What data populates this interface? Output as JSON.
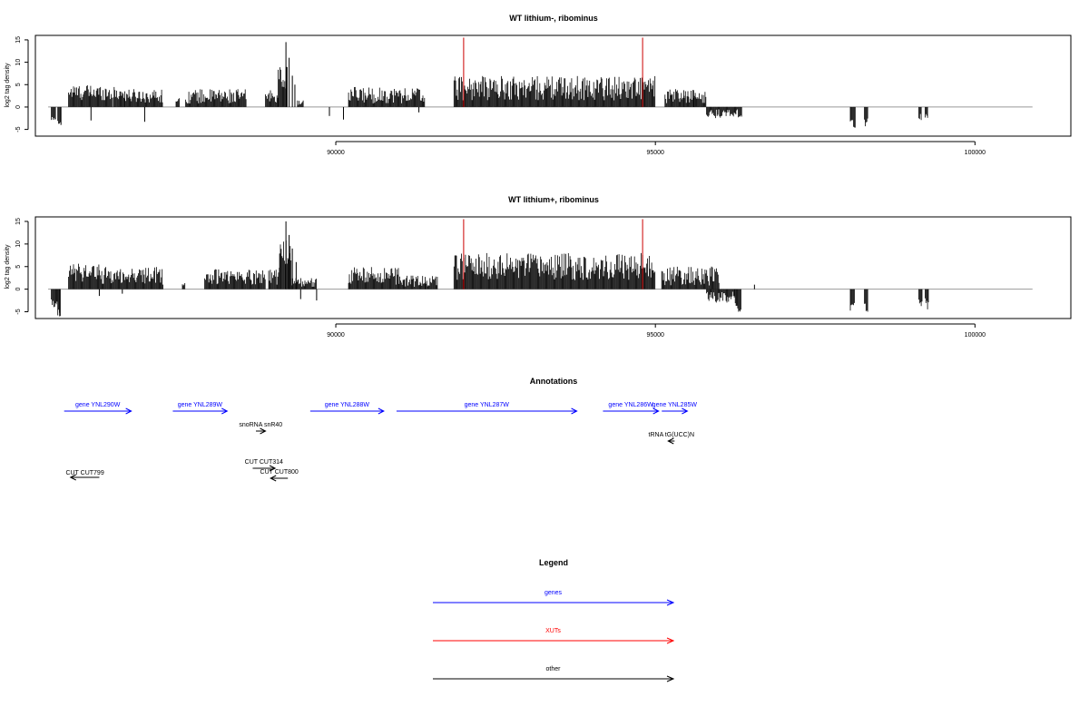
{
  "chart_data": [
    {
      "type": "bar",
      "title": "WT lithium-, ribominus",
      "ylabel": "log2 tag density",
      "xlim": [
        85300,
        101500
      ],
      "ylim": [
        -6.5,
        16
      ],
      "yticks": [
        "15",
        "10",
        "5",
        "0",
        "-5"
      ],
      "ytick_values": [
        15,
        10,
        5,
        0,
        -5
      ],
      "xticks": [
        "90000",
        "95000",
        "100000"
      ],
      "xtick_values": [
        90000,
        95000,
        100000
      ],
      "baseline_color": "#999999",
      "bar_color": "#000000",
      "marker_color": "#cc0000",
      "markers": [
        92000,
        94800
      ],
      "baseline_range": [
        85500,
        100900
      ],
      "segments": [
        {
          "start": 85550,
          "end": 85620,
          "min": 2,
          "max": 3,
          "sign": -1
        },
        {
          "start": 85650,
          "end": 85700,
          "min": 3,
          "max": 4.5,
          "sign": -1
        },
        {
          "start": 85820,
          "end": 86500,
          "min": 1.5,
          "max": 5,
          "sign": 1
        },
        {
          "start": 86520,
          "end": 86700,
          "min": 1.5,
          "max": 4.5,
          "sign": 1
        },
        {
          "start": 86700,
          "end": 87300,
          "min": 1,
          "max": 4,
          "sign": 1
        },
        {
          "start": 87500,
          "end": 87560,
          "min": 1,
          "max": 2,
          "sign": 1
        },
        {
          "start": 87650,
          "end": 88600,
          "min": 0.8,
          "max": 4,
          "sign": 1
        },
        {
          "start": 88900,
          "end": 89100,
          "min": 1,
          "max": 4,
          "sign": 1
        },
        {
          "start": 89100,
          "end": 89250,
          "min": 4,
          "max": 9,
          "sign": 1
        },
        {
          "start": 89400,
          "end": 89500,
          "min": 0.5,
          "max": 1.5,
          "sign": 1
        },
        {
          "start": 90200,
          "end": 91400,
          "min": 0.8,
          "max": 4.5,
          "sign": 1
        },
        {
          "start": 91850,
          "end": 95000,
          "min": 1.5,
          "max": 7,
          "sign": 1
        },
        {
          "start": 95150,
          "end": 95800,
          "min": 0.8,
          "max": 4,
          "sign": 1
        },
        {
          "start": 95800,
          "end": 96350,
          "min": 0.5,
          "max": 2.5,
          "sign": -1
        },
        {
          "start": 98050,
          "end": 98100,
          "min": 2.5,
          "max": 4.5,
          "sign": -1
        },
        {
          "start": 98100,
          "end": 98130,
          "min": 3.5,
          "max": 5,
          "sign": -1
        },
        {
          "start": 98270,
          "end": 98330,
          "min": 2.5,
          "max": 4.5,
          "sign": -1
        },
        {
          "start": 99120,
          "end": 99170,
          "min": 1.5,
          "max": 3,
          "sign": -1
        },
        {
          "start": 99220,
          "end": 99270,
          "min": 1.5,
          "max": 2.5,
          "sign": -1
        }
      ],
      "spikes": [
        {
          "x": 85700,
          "y": -4
        },
        {
          "x": 86170,
          "y": -3
        },
        {
          "x": 87010,
          "y": -3.3
        },
        {
          "x": 89220,
          "y": 14.5
        },
        {
          "x": 89270,
          "y": 11
        },
        {
          "x": 89320,
          "y": 7
        },
        {
          "x": 89360,
          "y": 5
        },
        {
          "x": 89900,
          "y": -2
        },
        {
          "x": 90120,
          "y": -2.8
        },
        {
          "x": 91300,
          "y": -1.2
        },
        {
          "x": 95450,
          "y": 2.5
        },
        {
          "x": 95600,
          "y": 2
        }
      ]
    },
    {
      "type": "bar",
      "title": "WT lithium+, ribominus",
      "ylabel": "log2 tag density",
      "xlim": [
        85300,
        101500
      ],
      "ylim": [
        -6.5,
        16
      ],
      "yticks": [
        "15",
        "10",
        "5",
        "0",
        "-5"
      ],
      "ytick_values": [
        15,
        10,
        5,
        0,
        -5
      ],
      "xticks": [
        "90000",
        "95000",
        "100000"
      ],
      "xtick_values": [
        90000,
        95000,
        100000
      ],
      "baseline_color": "#999999",
      "bar_color": "#000000",
      "marker_color": "#cc0000",
      "markers": [
        92000,
        94800
      ],
      "baseline_range": [
        85500,
        100900
      ],
      "segments": [
        {
          "start": 85550,
          "end": 85650,
          "min": 2,
          "max": 4,
          "sign": -1
        },
        {
          "start": 85650,
          "end": 85700,
          "min": 4,
          "max": 6,
          "sign": -1
        },
        {
          "start": 85820,
          "end": 86300,
          "min": 1.5,
          "max": 6,
          "sign": 1
        },
        {
          "start": 86300,
          "end": 87300,
          "min": 1,
          "max": 5,
          "sign": 1
        },
        {
          "start": 87600,
          "end": 87650,
          "min": 0.5,
          "max": 1.5,
          "sign": 1
        },
        {
          "start": 87950,
          "end": 88900,
          "min": 1,
          "max": 4.5,
          "sign": 1
        },
        {
          "start": 88950,
          "end": 89120,
          "min": 1,
          "max": 5,
          "sign": 1
        },
        {
          "start": 89120,
          "end": 89300,
          "min": 5,
          "max": 11,
          "sign": 1
        },
        {
          "start": 89300,
          "end": 89700,
          "min": 0.5,
          "max": 2.5,
          "sign": 1
        },
        {
          "start": 90200,
          "end": 91000,
          "min": 1,
          "max": 5,
          "sign": 1
        },
        {
          "start": 91000,
          "end": 91600,
          "min": 0.5,
          "max": 3,
          "sign": 1
        },
        {
          "start": 91850,
          "end": 95000,
          "min": 2,
          "max": 8,
          "sign": 1
        },
        {
          "start": 95100,
          "end": 96000,
          "min": 0.8,
          "max": 5,
          "sign": 1
        },
        {
          "start": 95800,
          "end": 96250,
          "min": 0.5,
          "max": 3,
          "sign": -1
        },
        {
          "start": 96250,
          "end": 96300,
          "min": 3,
          "max": 4.5,
          "sign": -1
        },
        {
          "start": 96300,
          "end": 96350,
          "min": 4.5,
          "max": 5,
          "sign": -1
        },
        {
          "start": 98050,
          "end": 98120,
          "min": 3,
          "max": 5,
          "sign": -1
        },
        {
          "start": 98270,
          "end": 98330,
          "min": 3,
          "max": 5.5,
          "sign": -1
        },
        {
          "start": 99120,
          "end": 99180,
          "min": 2,
          "max": 4,
          "sign": -1
        },
        {
          "start": 99220,
          "end": 99280,
          "min": 2,
          "max": 4.5,
          "sign": -1
        }
      ],
      "spikes": [
        {
          "x": 85680,
          "y": -6
        },
        {
          "x": 86300,
          "y": -1.5
        },
        {
          "x": 86660,
          "y": -1
        },
        {
          "x": 89220,
          "y": 15
        },
        {
          "x": 89270,
          "y": 12
        },
        {
          "x": 89320,
          "y": 9
        },
        {
          "x": 89380,
          "y": 6
        },
        {
          "x": 89450,
          "y": -2.2
        },
        {
          "x": 89700,
          "y": -2.5
        },
        {
          "x": 91400,
          "y": 1.5
        },
        {
          "x": 96550,
          "y": 1
        }
      ]
    }
  ],
  "annotations": {
    "title": "Annotations",
    "features": [
      {
        "label": "gene YNL290W",
        "start": 85750,
        "end": 86800,
        "row": 0,
        "strand": "+",
        "color": "#0000ff"
      },
      {
        "label": "gene YNL289W",
        "start": 87450,
        "end": 88300,
        "row": 0,
        "strand": "+",
        "color": "#0000ff"
      },
      {
        "label": "gene YNL288W",
        "start": 89600,
        "end": 90750,
        "row": 0,
        "strand": "+",
        "color": "#0000ff"
      },
      {
        "label": "gene YNL287W",
        "start": 90950,
        "end": 93770,
        "row": 0,
        "strand": "+",
        "color": "#0000ff"
      },
      {
        "label": "gene YNL286W",
        "start": 94180,
        "end": 95050,
        "row": 0,
        "strand": "+",
        "color": "#0000ff"
      },
      {
        "label": "gene YNL285W",
        "start": 95100,
        "end": 95500,
        "row": 0,
        "strand": "+",
        "color": "#0000ff"
      },
      {
        "label": "snoRNA snR40",
        "start": 88750,
        "end": 88900,
        "row": 1,
        "strand": "+",
        "color": "#000000"
      },
      {
        "label": "tRNA tG(UCC)N",
        "start": 95200,
        "end": 95300,
        "row": 2,
        "strand": "-",
        "color": "#000000"
      },
      {
        "label": "CUT CUT314",
        "start": 88700,
        "end": 89050,
        "row": 3,
        "strand": "+",
        "color": "#000000"
      },
      {
        "label": "CUT CUT800",
        "start": 88980,
        "end": 89250,
        "row": 4,
        "strand": "-",
        "color": "#000000"
      },
      {
        "label": "CUT CUT799",
        "start": 85850,
        "end": 86300,
        "row": 5,
        "strand": "-",
        "color": "#000000"
      }
    ]
  },
  "legend": {
    "title": "Legend",
    "items": [
      {
        "label": "genes",
        "color": "#0000ff"
      },
      {
        "label": "XUTs",
        "color": "#ff0000"
      },
      {
        "label": "other",
        "color": "#000000"
      }
    ]
  }
}
